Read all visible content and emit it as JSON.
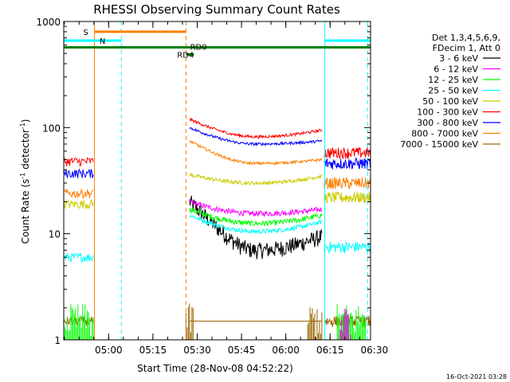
{
  "chart_data": {
    "type": "line",
    "title": "RHESSI Observing Summary Count Rates",
    "xlabel": "Start Time (28-Nov-08 04:52:22)",
    "ylabel_prefix": "Count Rate (s",
    "ylabel_sup": "-1",
    "ylabel_suffix": " detector",
    "ylabel_sup2": "-1",
    "ylabel_end": ")",
    "y_scale": "log",
    "ylim": [
      1,
      1000
    ],
    "x_range_min": [
      -7.6,
      96.3
    ],
    "x_ticks": [
      {
        "min": 7.6,
        "label": "05:00"
      },
      {
        "min": 22.6,
        "label": "05:15"
      },
      {
        "min": 37.6,
        "label": "05:30"
      },
      {
        "min": 52.6,
        "label": "05:45"
      },
      {
        "min": 67.6,
        "label": "06:00"
      },
      {
        "min": 82.6,
        "label": "06:15"
      },
      {
        "min": 97.6,
        "label": "06:30"
      }
    ],
    "y_ticks": [
      {
        "value": 1,
        "label": "1"
      },
      {
        "value": 10,
        "label": "10"
      },
      {
        "value": 100,
        "label": "100"
      },
      {
        "value": 1000,
        "label": "1000"
      }
    ],
    "legend": {
      "header1": "Det 1,3,4,5,6,9,",
      "header2": "FDecim 1, Att 0",
      "placement": "right"
    },
    "series": [
      {
        "name": "3 - 6 keV",
        "color": "#000000",
        "pre": 0,
        "level": 8,
        "start_end": [
          20,
          9.5
        ],
        "mid_dip": 7.0,
        "noise": 0.18,
        "post": 0
      },
      {
        "name": "6 - 12 keV",
        "color": "#ff00ff",
        "pre": 0,
        "level": 15,
        "start_end": [
          20,
          17
        ],
        "mid_dip": 15.5,
        "noise": 0.06,
        "post": 0
      },
      {
        "name": "12 - 25 keV",
        "color": "#00ff00",
        "pre": 0,
        "level": 12,
        "start_end": [
          17,
          15
        ],
        "mid_dip": 12.5,
        "noise": 0.06,
        "post": 0
      },
      {
        "name": "25 - 50 keV",
        "color": "#00ffff",
        "pre": 6.0,
        "level": 10,
        "start_end": [
          15,
          13
        ],
        "mid_dip": 10.5,
        "noise": 0.05,
        "post": 7.5
      },
      {
        "name": "50 - 100 keV",
        "color": "#cccc00",
        "pre": 19,
        "level": 30,
        "start_end": [
          36,
          35
        ],
        "mid_dip": 30,
        "noise": 0.04,
        "post": 22
      },
      {
        "name": "100 - 300 keV",
        "color": "#ff0000",
        "pre": 48,
        "level": 85,
        "start_end": [
          120,
          95
        ],
        "mid_dip": 82,
        "noise": 0.03,
        "post": 58
      },
      {
        "name": "300 - 800 keV",
        "color": "#0000ff",
        "pre": 37,
        "level": 70,
        "start_end": [
          100,
          75
        ],
        "mid_dip": 70,
        "noise": 0.03,
        "post": 46
      },
      {
        "name": "800 - 7000 keV",
        "color": "#ff7f00",
        "pre": 24,
        "level": 45,
        "start_end": [
          75,
          50
        ],
        "mid_dip": 46,
        "noise": 0.03,
        "post": 30
      },
      {
        "name": "7000 - 15000 keV",
        "color": "#996600",
        "pre": 1.5,
        "level": 1.5,
        "start_end": [
          1.5,
          1.5
        ],
        "mid_dip": 1.5,
        "noise": 0.0,
        "post": 1.5
      }
    ],
    "flag_bars": [
      {
        "label": "S",
        "color": "#ff7f00",
        "y": 800,
        "x0": 2.8,
        "x1": 33.8
      },
      {
        "label": "N",
        "color": "#00ffff",
        "y": 660,
        "x0": -7.6,
        "x1": 11.9
      },
      {
        "label": "N",
        "color": "#00ffff",
        "y": 660,
        "x0": 80.8,
        "x1": 96.3
      },
      {
        "label": "RD0",
        "color": "#008000",
        "y": 570,
        "x0": -7.6,
        "x1": 96.3
      },
      {
        "label": "RD4",
        "color": "#008000",
        "y": 490,
        "x0": 33.8,
        "x1": 36.5
      }
    ],
    "flag_labels": {
      "s": "S",
      "n": "N",
      "rd0": "RD0",
      "rd4": "RD4"
    },
    "vlines": [
      {
        "x": 2.8,
        "color": "#ff7f00",
        "dash": false
      },
      {
        "x": 11.9,
        "color": "#00ffff",
        "dash": true
      },
      {
        "x": 33.8,
        "color": "#ff7f00",
        "dash": true
      },
      {
        "x": 80.8,
        "color": "#00ffff",
        "dash": false
      },
      {
        "x": 95.3,
        "color": "#00ffff",
        "dash": true
      }
    ],
    "gaps": {
      "pre_end": 2.6,
      "obs_start": 35.0,
      "obs_end": 80.0,
      "post_start": 80.6
    },
    "grid": false
  },
  "footer": {
    "date": "16-Oct-2021 03:28"
  }
}
